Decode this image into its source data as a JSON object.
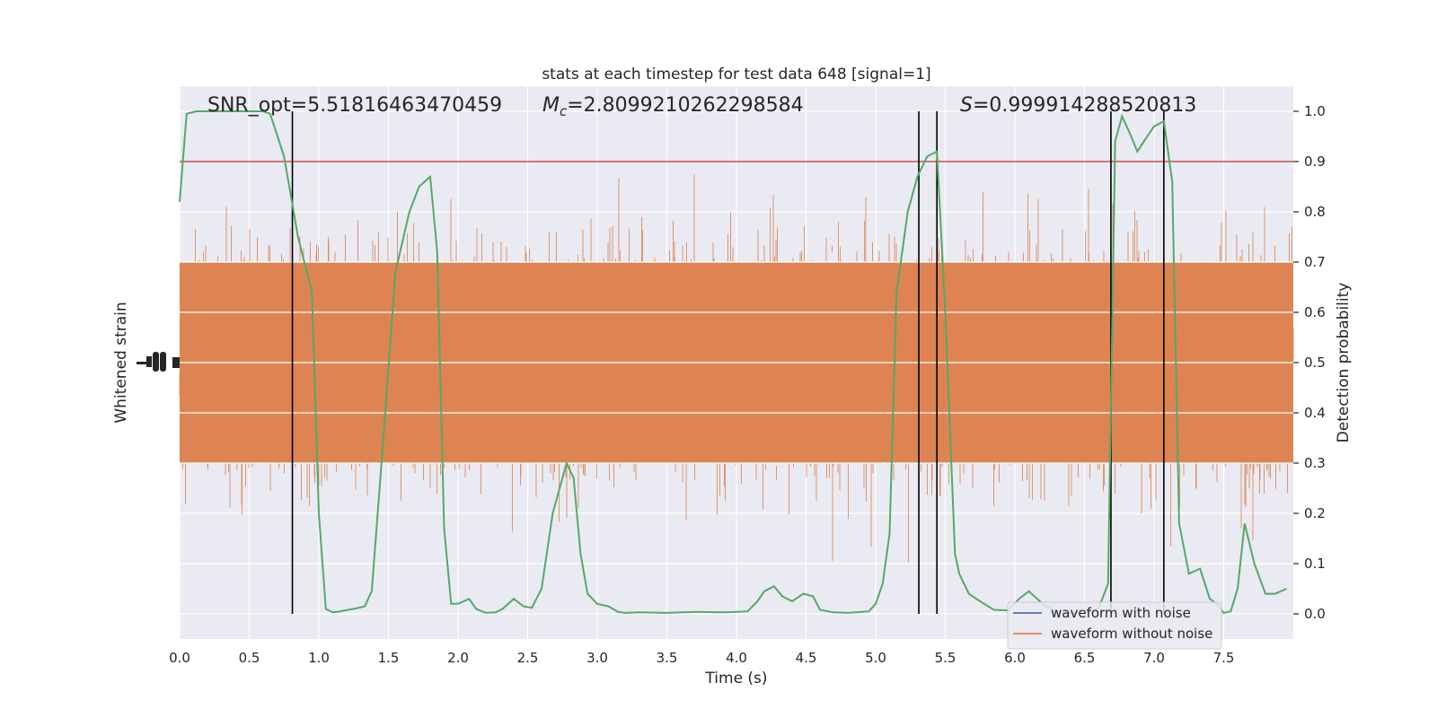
{
  "chart_data": {
    "type": "line",
    "title": "stats at each timestep for test data 648 [signal=1]",
    "xlabel": "Time (s)",
    "ylabel_left": "Whitened strain",
    "ylabel_right": "Detection probability",
    "xlim": [
      0,
      8
    ],
    "ylim_right": [
      -0.05,
      1.05
    ],
    "x_ticks": [
      "0.0",
      "0.5",
      "1.0",
      "1.5",
      "2.0",
      "2.5",
      "3.0",
      "3.5",
      "4.0",
      "4.5",
      "5.0",
      "5.5",
      "6.0",
      "6.5",
      "7.0",
      "7.5"
    ],
    "y_ticks_right": [
      "0.0",
      "0.1",
      "0.2",
      "0.3",
      "0.4",
      "0.5",
      "0.6",
      "0.7",
      "0.8",
      "0.9",
      "1.0"
    ],
    "annotations": {
      "snr": "SNR_opt=5.51816463470459",
      "mc_symbol": "M",
      "mc_sub": "c",
      "mc_value": "=2.8099210262298584",
      "s_symbol": "S",
      "s_value": "=0.999914288520813"
    },
    "threshold": 0.9,
    "vertical_lines_x": [
      0.81,
      5.31,
      5.44,
      6.69,
      7.07
    ],
    "legend": {
      "placement": "lower-right",
      "entries": [
        {
          "label": "waveform with noise",
          "color": "#4c72b0"
        },
        {
          "label": "waveform without noise",
          "color": "#dd8452"
        }
      ]
    },
    "series": [
      {
        "name": "waveform with noise",
        "color": "#4c72b0"
      },
      {
        "name": "waveform without noise",
        "color": "#dd8452"
      },
      {
        "name": "",
        "color": "#55a868",
        "x": [
          0.0,
          0.05,
          0.12,
          0.2,
          0.3,
          0.4,
          0.5,
          0.6,
          0.65,
          0.75,
          0.85,
          0.95,
          1.0,
          1.05,
          1.1,
          1.15,
          1.25,
          1.33,
          1.38,
          1.45,
          1.55,
          1.65,
          1.72,
          1.8,
          1.85,
          1.9,
          1.95,
          2.0,
          2.08,
          2.13,
          2.2,
          2.27,
          2.32,
          2.4,
          2.47,
          2.53,
          2.6,
          2.68,
          2.73,
          2.78,
          2.83,
          2.88,
          2.93,
          3.0,
          3.08,
          3.15,
          3.2,
          3.3,
          3.5,
          3.7,
          3.9,
          4.0,
          4.08,
          4.15,
          4.2,
          4.27,
          4.33,
          4.4,
          4.48,
          4.55,
          4.6,
          4.7,
          4.8,
          4.95,
          5.0,
          5.05,
          5.1,
          5.15,
          5.23,
          5.3,
          5.37,
          5.44,
          5.5,
          5.57,
          5.6,
          5.67,
          5.75,
          5.85,
          5.95,
          6.03,
          6.1,
          6.2,
          6.3,
          6.4,
          6.5,
          6.6,
          6.67,
          6.72,
          6.77,
          6.82,
          6.88,
          6.95,
          7.0,
          7.07,
          7.13,
          7.18,
          7.25,
          7.33,
          7.4,
          7.45,
          7.5,
          7.55,
          7.6,
          7.65,
          7.72,
          7.8,
          7.87,
          7.95
        ],
        "values": [
          0.82,
          0.995,
          1.0,
          1.0,
          1.0,
          1.0,
          1.0,
          1.0,
          0.995,
          0.91,
          0.75,
          0.64,
          0.2,
          0.01,
          0.003,
          0.005,
          0.01,
          0.015,
          0.045,
          0.3,
          0.68,
          0.8,
          0.85,
          0.87,
          0.72,
          0.17,
          0.02,
          0.02,
          0.03,
          0.01,
          0.002,
          0.003,
          0.01,
          0.03,
          0.015,
          0.012,
          0.05,
          0.2,
          0.25,
          0.3,
          0.27,
          0.12,
          0.04,
          0.02,
          0.015,
          0.004,
          0.002,
          0.003,
          0.002,
          0.004,
          0.003,
          0.004,
          0.005,
          0.025,
          0.045,
          0.055,
          0.035,
          0.025,
          0.04,
          0.035,
          0.008,
          0.003,
          0.002,
          0.005,
          0.02,
          0.06,
          0.16,
          0.64,
          0.8,
          0.87,
          0.91,
          0.92,
          0.6,
          0.12,
          0.08,
          0.04,
          0.025,
          0.008,
          0.007,
          0.03,
          0.045,
          0.02,
          0.003,
          0.002,
          0.002,
          0.01,
          0.06,
          0.94,
          0.99,
          0.96,
          0.92,
          0.95,
          0.97,
          0.98,
          0.86,
          0.18,
          0.08,
          0.09,
          0.03,
          0.02,
          0.002,
          0.005,
          0.05,
          0.18,
          0.1,
          0.04,
          0.04,
          0.05
        ]
      }
    ]
  }
}
